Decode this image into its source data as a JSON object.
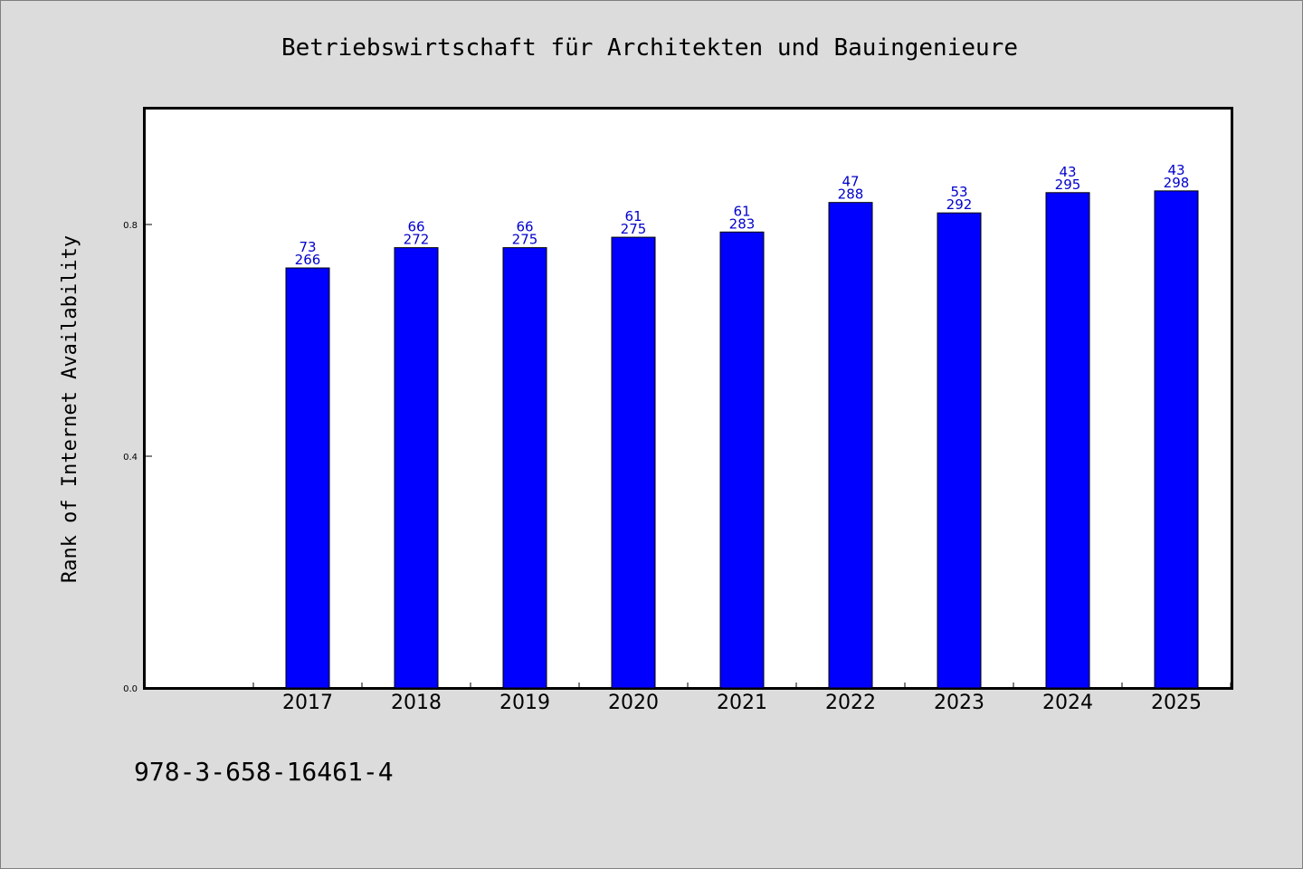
{
  "chart_data": {
    "type": "bar",
    "title": "Betriebswirtschaft für Architekten und Bauingenieure",
    "ylabel": "Rank of Internet Availability",
    "xlabel": "",
    "categories": [
      "2017",
      "2018",
      "2019",
      "2020",
      "2021",
      "2022",
      "2023",
      "2024",
      "2025"
    ],
    "values": [
      0.725,
      0.76,
      0.76,
      0.778,
      0.787,
      0.838,
      0.82,
      0.855,
      0.858
    ],
    "labels_top": [
      "73",
      "66",
      "66",
      "61",
      "61",
      "47",
      "53",
      "43",
      "43"
    ],
    "labels_bottom": [
      "266",
      "272",
      "275",
      "275",
      "283",
      "288",
      "292",
      "295",
      "298"
    ],
    "y_ticks": [
      "0.0",
      "0.4",
      "0.8"
    ],
    "ylim": [
      0,
      1.0
    ],
    "grid": false,
    "bar_color": "#0000ff",
    "label_color": "#0000cc"
  },
  "footer": {
    "isbn": "978-3-658-16461-4"
  }
}
